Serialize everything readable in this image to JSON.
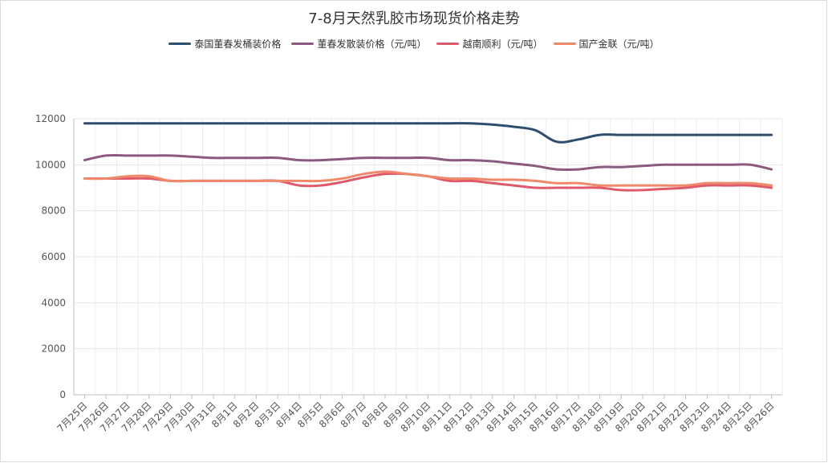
{
  "chart_data": {
    "type": "line",
    "title": "7-8月天然乳胶市场现货价格走势",
    "xlabel": "",
    "ylabel": "",
    "ylim": [
      0,
      12000
    ],
    "yticks": [
      "0",
      "2000",
      "4000",
      "6000",
      "8000",
      "10000",
      "12000"
    ],
    "grid": true,
    "legend_position": "top",
    "categories": [
      "7月25日",
      "7月26日",
      "7月27日",
      "7月28日",
      "7月29日",
      "7月30日",
      "7月31日",
      "8月1日",
      "8月2日",
      "8月3日",
      "8月4日",
      "8月5日",
      "8月6日",
      "8月7日",
      "8月8日",
      "8月9日",
      "8月10日",
      "8月11日",
      "8月12日",
      "8月13日",
      "8月14日",
      "8月15日",
      "8月16日",
      "8月17日",
      "8月18日",
      "8月19日",
      "8月20日",
      "8月21日",
      "8月22日",
      "8月23日",
      "8月24日",
      "8月25日",
      "8月26日"
    ],
    "series": [
      {
        "name": "泰国董春发桶装价格",
        "color": "#2e4e6e",
        "values": [
          11800,
          11800,
          11800,
          11800,
          11800,
          11800,
          11800,
          11800,
          11800,
          11800,
          11800,
          11800,
          11800,
          11800,
          11800,
          11800,
          11800,
          11800,
          11800,
          11750,
          11650,
          11500,
          11000,
          11100,
          11300,
          11300,
          11300,
          11300,
          11300,
          11300,
          11300,
          11300,
          11300
        ]
      },
      {
        "name": "董春发散装价格（元/吨）",
        "color": "#8c5a7e",
        "values": [
          10200,
          10400,
          10400,
          10400,
          10400,
          10350,
          10300,
          10300,
          10300,
          10300,
          10200,
          10200,
          10250,
          10300,
          10300,
          10300,
          10300,
          10200,
          10200,
          10150,
          10050,
          9950,
          9800,
          9800,
          9900,
          9900,
          9950,
          10000,
          10000,
          10000,
          10000,
          10000,
          9800
        ]
      },
      {
        "name": "越南顺利（元/吨）",
        "color": "#de5a6a",
        "values": [
          9400,
          9400,
          9400,
          9400,
          9300,
          9300,
          9300,
          9300,
          9300,
          9300,
          9100,
          9100,
          9250,
          9450,
          9600,
          9600,
          9500,
          9300,
          9300,
          9200,
          9100,
          9000,
          9000,
          9000,
          9000,
          8900,
          8900,
          8950,
          9000,
          9100,
          9100,
          9100,
          9000
        ]
      },
      {
        "name": "国产金联（元/吨）",
        "color": "#f0886a",
        "values": [
          9400,
          9400,
          9500,
          9500,
          9300,
          9300,
          9300,
          9300,
          9300,
          9300,
          9300,
          9300,
          9400,
          9600,
          9700,
          9600,
          9500,
          9400,
          9400,
          9350,
          9350,
          9300,
          9200,
          9200,
          9100,
          9100,
          9100,
          9100,
          9100,
          9200,
          9200,
          9200,
          9100
        ]
      }
    ]
  }
}
